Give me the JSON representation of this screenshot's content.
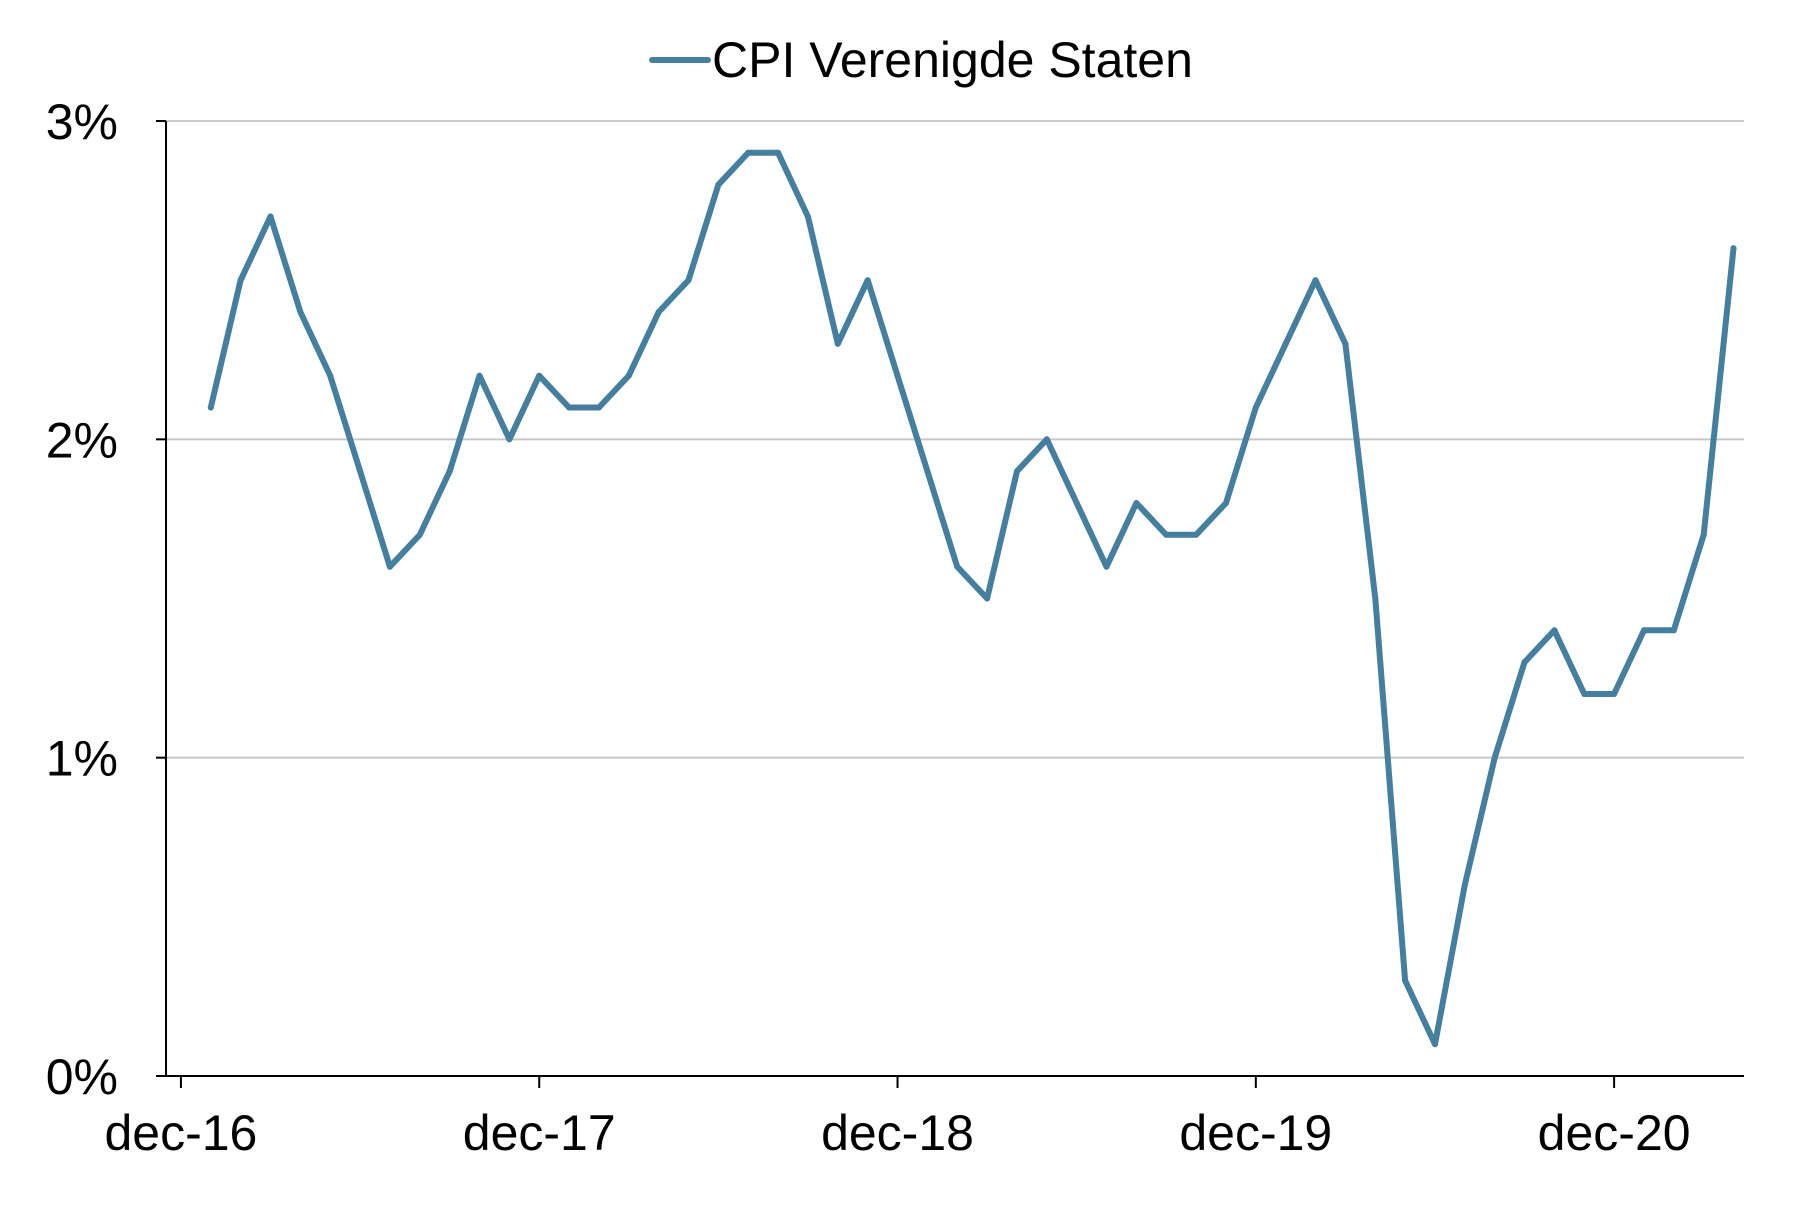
{
  "chart_data": {
    "type": "line",
    "title": "",
    "xlabel": "",
    "ylabel": "",
    "legend_position": "top-center",
    "grid": true,
    "ylim": [
      0,
      3
    ],
    "yticks": [
      {
        "value": 0,
        "label": "0%"
      },
      {
        "value": 1,
        "label": "1%"
      },
      {
        "value": 2,
        "label": "2%"
      },
      {
        "value": 3,
        "label": "3%"
      }
    ],
    "xlim": [
      "2016-12",
      "2021-04"
    ],
    "xticks": [
      {
        "value": "2016-12",
        "label": "dec-16"
      },
      {
        "value": "2017-12",
        "label": "dec-17"
      },
      {
        "value": "2018-12",
        "label": "dec-18"
      },
      {
        "value": "2019-12",
        "label": "dec-19"
      },
      {
        "value": "2020-12",
        "label": "dec-20"
      }
    ],
    "x": [
      "2017-01",
      "2017-02",
      "2017-03",
      "2017-04",
      "2017-05",
      "2017-06",
      "2017-07",
      "2017-08",
      "2017-09",
      "2017-10",
      "2017-11",
      "2017-12",
      "2018-01",
      "2018-02",
      "2018-03",
      "2018-04",
      "2018-05",
      "2018-06",
      "2018-07",
      "2018-08",
      "2018-09",
      "2018-10",
      "2018-11",
      "2018-12",
      "2019-01",
      "2019-02",
      "2019-03",
      "2019-04",
      "2019-05",
      "2019-06",
      "2019-07",
      "2019-08",
      "2019-09",
      "2019-10",
      "2019-11",
      "2019-12",
      "2020-01",
      "2020-02",
      "2020-03",
      "2020-04",
      "2020-05",
      "2020-06",
      "2020-07",
      "2020-08",
      "2020-09",
      "2020-10",
      "2020-11",
      "2020-12",
      "2021-01",
      "2021-02",
      "2021-03",
      "2021-04"
    ],
    "series": [
      {
        "name": "CPI Verenigde Staten",
        "color": "#457fa0",
        "values": [
          2.1,
          2.5,
          2.7,
          2.4,
          2.2,
          1.9,
          1.6,
          1.7,
          1.9,
          2.2,
          2.0,
          2.2,
          2.1,
          2.1,
          2.2,
          2.4,
          2.5,
          2.8,
          2.9,
          2.9,
          2.7,
          2.3,
          2.5,
          2.2,
          1.9,
          1.6,
          1.5,
          1.9,
          2.0,
          1.8,
          1.6,
          1.8,
          1.7,
          1.7,
          1.8,
          2.1,
          2.3,
          2.5,
          2.3,
          1.5,
          0.3,
          0.1,
          0.6,
          1.0,
          1.3,
          1.4,
          1.2,
          1.2,
          1.4,
          1.4,
          1.7,
          2.6
        ]
      }
    ]
  }
}
